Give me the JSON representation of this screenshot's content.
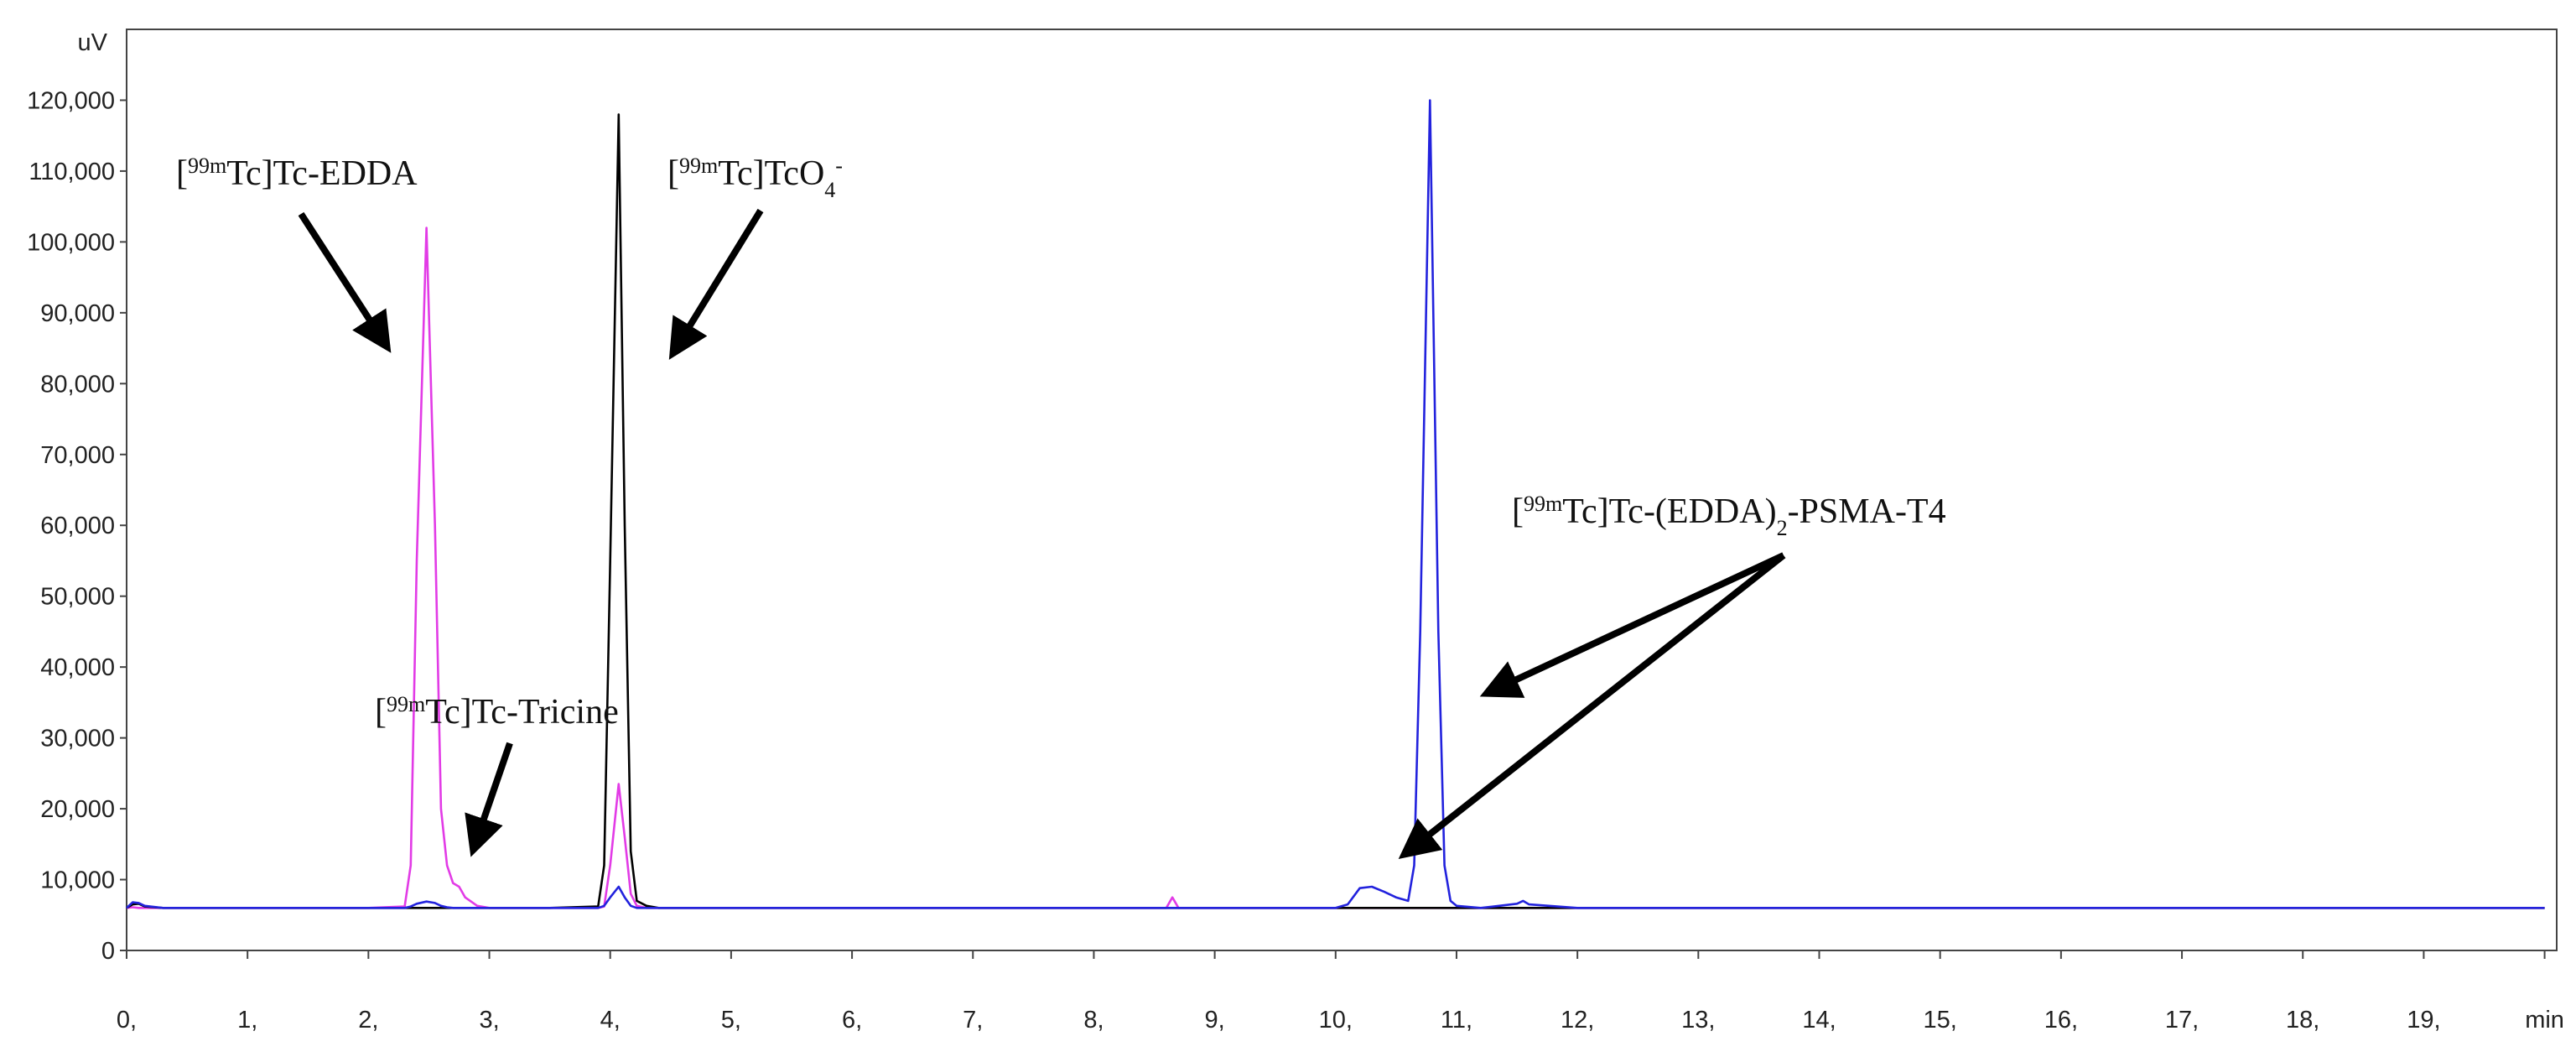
{
  "chart_data": {
    "type": "line",
    "y_label": "uV",
    "x": [
      0,
      0.05,
      0.1,
      0.15,
      0.3,
      1,
      2,
      2.3,
      2.35,
      2.4,
      2.48,
      2.55,
      2.6,
      2.65,
      2.7,
      2.75,
      2.8,
      2.9,
      3,
      3.5,
      3.9,
      3.95,
      4,
      4.07,
      4.12,
      4.17,
      4.22,
      4.3,
      4.4,
      5,
      6,
      7,
      8,
      8.6,
      8.65,
      8.7,
      9,
      10,
      10.1,
      10.2,
      10.3,
      10.4,
      10.5,
      10.6,
      10.65,
      10.7,
      10.78,
      10.85,
      10.9,
      10.95,
      11,
      11.2,
      11.5,
      11.55,
      11.6,
      12,
      14,
      16,
      18,
      20
    ],
    "series": [
      {
        "color": "#e23be6",
        "values": [
          6000,
          6100,
          6000,
          6000,
          6000,
          6000,
          6000,
          6200,
          12000,
          55000,
          102000,
          60000,
          20000,
          12000,
          9500,
          9000,
          7500,
          6300,
          6000,
          6000,
          6000,
          6200,
          12000,
          23500,
          16000,
          8000,
          6300,
          6000,
          6000,
          6000,
          6000,
          6000,
          6000,
          6000,
          7500,
          6000,
          6000,
          6000,
          6000,
          6000,
          6000,
          6000,
          6000,
          6000,
          6000,
          6000,
          6000,
          6000,
          6000,
          6000,
          6000,
          6000,
          6000,
          6000,
          6000,
          6000,
          6000,
          6000,
          6000,
          6000
        ]
      },
      {
        "color": "#000000",
        "values": [
          6000,
          6500,
          6600,
          6200,
          6000,
          6000,
          6000,
          6000,
          6000,
          6000,
          6000,
          6000,
          6000,
          6000,
          6000,
          6000,
          6000,
          6000,
          6000,
          6000,
          6200,
          12000,
          55000,
          118000,
          60000,
          14000,
          7000,
          6300,
          6000,
          6000,
          6000,
          6000,
          6000,
          6000,
          6000,
          6000,
          6000,
          6000,
          6000,
          6000,
          6000,
          6000,
          6000,
          6000,
          6000,
          6000,
          6000,
          6000,
          6000,
          6000,
          6000,
          6000,
          6000,
          6000,
          6000,
          6000,
          6000,
          6000,
          6000,
          6000
        ]
      },
      {
        "color": "#2222dd",
        "values": [
          6000,
          6800,
          6700,
          6300,
          6000,
          6000,
          6000,
          6000,
          6200,
          6600,
          6900,
          6700,
          6300,
          6100,
          6000,
          6000,
          6000,
          6000,
          6000,
          6000,
          6000,
          6300,
          7500,
          9000,
          7500,
          6300,
          6000,
          6000,
          6000,
          6000,
          6000,
          6000,
          6000,
          6000,
          6000,
          6000,
          6000,
          6000,
          6500,
          8800,
          9000,
          8300,
          7500,
          7000,
          12000,
          45000,
          120000,
          45000,
          12000,
          7000,
          6300,
          6000,
          6600,
          7000,
          6500,
          6000,
          6000,
          6000,
          6000,
          6000
        ]
      }
    ],
    "xlim": [
      0,
      20.1
    ],
    "ylim": [
      0,
      130000
    ],
    "xticks": [
      {
        "value": 0,
        "label": "0,"
      },
      {
        "value": 1,
        "label": "1,"
      },
      {
        "value": 2,
        "label": "2,"
      },
      {
        "value": 3,
        "label": "3,"
      },
      {
        "value": 4,
        "label": "4,"
      },
      {
        "value": 5,
        "label": "5,"
      },
      {
        "value": 6,
        "label": "6,"
      },
      {
        "value": 7,
        "label": "7,"
      },
      {
        "value": 8,
        "label": "8,"
      },
      {
        "value": 9,
        "label": "9,"
      },
      {
        "value": 10,
        "label": "10,"
      },
      {
        "value": 11,
        "label": "11,"
      },
      {
        "value": 12,
        "label": "12,"
      },
      {
        "value": 13,
        "label": "13,"
      },
      {
        "value": 14,
        "label": "14,"
      },
      {
        "value": 15,
        "label": "15,"
      },
      {
        "value": 16,
        "label": "16,"
      },
      {
        "value": 17,
        "label": "17,"
      },
      {
        "value": 18,
        "label": "18,"
      },
      {
        "value": 19,
        "label": "19,"
      },
      {
        "value": 20,
        "label": "min"
      }
    ],
    "yticks": [
      0,
      {
        "value": 10000,
        "label": "10,000"
      },
      {
        "value": 20000,
        "label": "20,000"
      },
      {
        "value": 30000,
        "label": "30,000"
      },
      {
        "value": 40000,
        "label": "40,000"
      },
      {
        "value": 50000,
        "label": "50,000"
      },
      {
        "value": 60000,
        "label": "60,000"
      },
      {
        "value": 70000,
        "label": "70,000"
      },
      {
        "value": 80000,
        "label": "80,000"
      },
      {
        "value": 90000,
        "label": "90,000"
      },
      {
        "value": 100000,
        "label": "100,000"
      },
      {
        "value": 110000,
        "label": "110,000"
      },
      {
        "value": 120000,
        "label": "120,000"
      }
    ],
    "grid": false,
    "annotations": [
      [
        {
          "text": "["
        },
        {
          "text": "99m",
          "script": "super"
        },
        {
          "text": "Tc]Tc-EDDA"
        }
      ],
      [
        {
          "text": "["
        },
        {
          "text": "99m",
          "script": "super"
        },
        {
          "text": "Tc]TcO"
        },
        {
          "text": "4",
          "script": "sub"
        },
        {
          "text": "-",
          "script": "super"
        }
      ],
      [
        {
          "text": "["
        },
        {
          "text": "99m",
          "script": "super"
        },
        {
          "text": "Tc]Tc-Tricine"
        }
      ],
      [
        {
          "text": "["
        },
        {
          "text": "99m",
          "script": "super"
        },
        {
          "text": "Tc]Tc-(EDDA)"
        },
        {
          "text": "2",
          "script": "sub"
        },
        {
          "text": "-PSMA-T4"
        }
      ]
    ]
  }
}
